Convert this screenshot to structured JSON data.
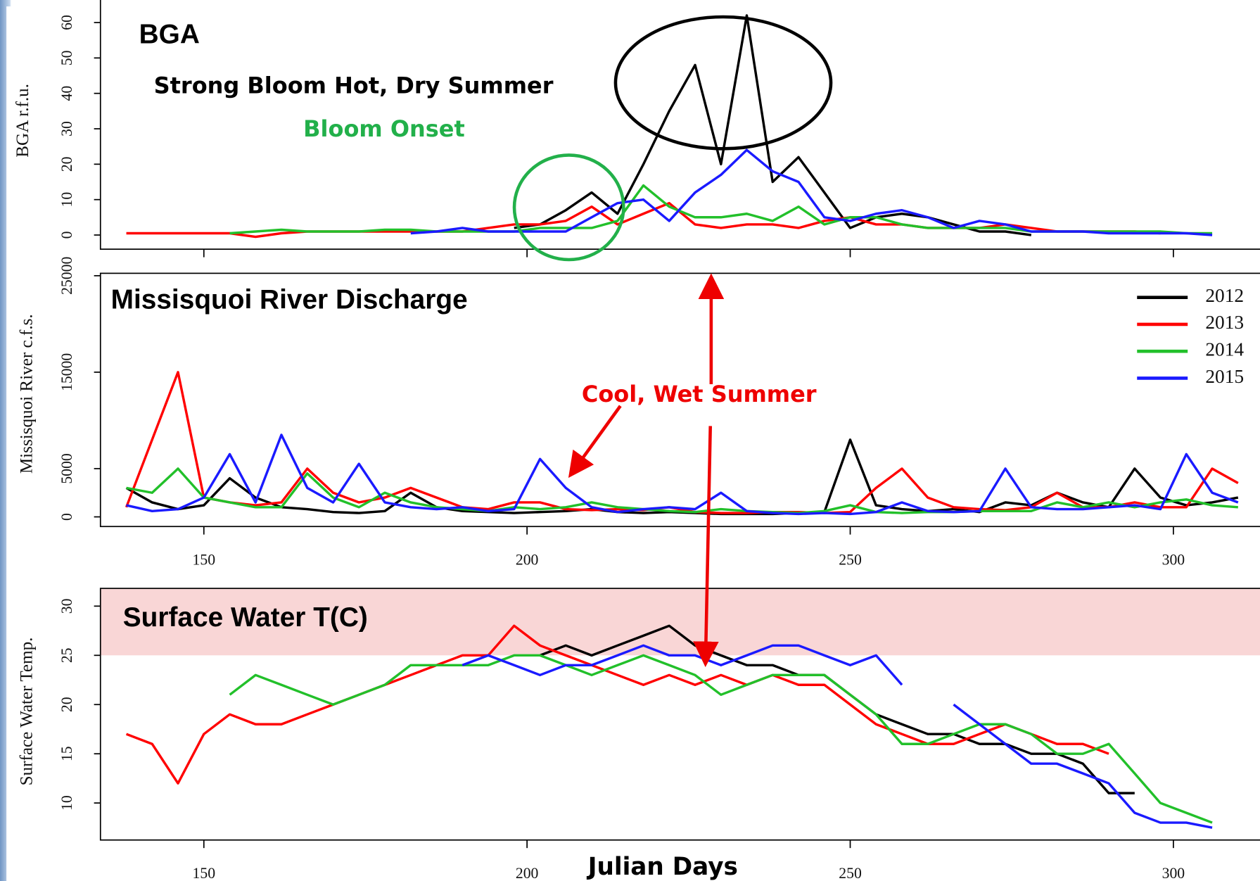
{
  "chart_data": [
    {
      "type": "line",
      "title": "BGA",
      "y_label": "BGA r.f.u.",
      "annotations": [
        "Strong Bloom Hot, Dry Summer",
        "Bloom Onset"
      ],
      "x": [
        138,
        142,
        146,
        150,
        154,
        158,
        162,
        166,
        170,
        174,
        178,
        182,
        186,
        190,
        194,
        198,
        202,
        206,
        210,
        214,
        218,
        222,
        226,
        230,
        234,
        238,
        242,
        246,
        250,
        254,
        258,
        262,
        266,
        270,
        274,
        278,
        282,
        286,
        290,
        294,
        298,
        302,
        306,
        310
      ],
      "xlim": [
        134,
        313.4
      ],
      "ylim": [
        -4,
        67.5
      ],
      "xticks": [
        150,
        200,
        250,
        300
      ],
      "yticks": [
        0,
        10,
        20,
        30,
        40,
        50,
        60
      ],
      "series": [
        {
          "color": "#000000",
          "values": [
            null,
            null,
            null,
            null,
            null,
            null,
            null,
            null,
            null,
            null,
            null,
            null,
            null,
            null,
            null,
            2,
            3,
            7,
            12,
            6,
            20,
            35,
            48,
            20,
            62,
            15,
            22,
            12,
            2,
            5,
            6,
            5,
            3,
            1,
            1,
            0,
            null,
            null,
            null,
            null,
            null,
            null,
            null,
            null
          ]
        },
        {
          "color": "#ff0000",
          "values": [
            0.5,
            0.5,
            0.5,
            0.5,
            0.5,
            -0.5,
            0.5,
            1,
            1,
            1,
            1,
            1,
            1,
            1,
            2,
            3,
            3,
            4,
            8,
            3,
            6,
            9,
            3,
            2,
            3,
            3,
            2,
            4,
            5,
            3,
            3,
            2,
            2,
            2,
            3,
            2,
            1,
            1,
            1,
            1,
            0.5,
            null,
            null,
            null
          ]
        },
        {
          "color": "#22c02a",
          "values": [
            null,
            null,
            null,
            null,
            0.5,
            1,
            1.5,
            1,
            1,
            1,
            1.5,
            1.5,
            1,
            1,
            1,
            1,
            2,
            2,
            2,
            4,
            14,
            8,
            5,
            5,
            6,
            4,
            8,
            3,
            5,
            5,
            3,
            2,
            2,
            2,
            2,
            1,
            1,
            1,
            1,
            1,
            1,
            0.5,
            0.5,
            null
          ]
        },
        {
          "color": "#1a1aff",
          "values": [
            null,
            null,
            null,
            null,
            null,
            null,
            null,
            null,
            null,
            null,
            null,
            0.5,
            1,
            2,
            1,
            1,
            1,
            1,
            5,
            9,
            10,
            4,
            12,
            17,
            24,
            18,
            15,
            5,
            4,
            6,
            7,
            5,
            2,
            4,
            3,
            1,
            1,
            1,
            0.5,
            0.5,
            0.5,
            0.5,
            0,
            null
          ]
        }
      ]
    },
    {
      "type": "line",
      "title": "Missisquoi River Discharge",
      "y_label": "Missisquoi River c.f.s.",
      "annotations": [
        "Cool, Wet Summer"
      ],
      "legend": "upper right",
      "x": [
        138,
        142,
        146,
        150,
        154,
        158,
        162,
        166,
        170,
        174,
        178,
        182,
        186,
        190,
        194,
        198,
        202,
        206,
        210,
        214,
        218,
        222,
        226,
        230,
        234,
        238,
        242,
        246,
        250,
        254,
        258,
        262,
        266,
        270,
        274,
        278,
        282,
        286,
        290,
        294,
        298,
        302,
        306,
        310
      ],
      "xlim": [
        134,
        313.4
      ],
      "ylim": [
        -1000,
        25250
      ],
      "xticks": [
        150,
        200,
        250,
        300
      ],
      "yticks": [
        0,
        5000,
        15000,
        25000
      ],
      "series": [
        {
          "name": "2012",
          "color": "#000000",
          "values": [
            3000,
            1500,
            800,
            1200,
            4000,
            2000,
            1000,
            800,
            500,
            400,
            600,
            2500,
            1000,
            600,
            500,
            400,
            500,
            600,
            800,
            500,
            400,
            500,
            400,
            300,
            300,
            300,
            400,
            500,
            8000,
            1200,
            800,
            600,
            800,
            500,
            1500,
            1200,
            2500,
            1500,
            1000,
            5000,
            2000,
            1200,
            1500,
            2000
          ]
        },
        {
          "name": "2013",
          "color": "#ff0000",
          "values": [
            1000,
            8000,
            15000,
            2000,
            1500,
            1200,
            1500,
            5000,
            2500,
            1500,
            2000,
            3000,
            2000,
            1000,
            800,
            1500,
            1500,
            800,
            700,
            800,
            700,
            1000,
            500,
            400,
            400,
            500,
            500,
            400,
            500,
            3000,
            5000,
            2000,
            1000,
            800,
            700,
            1000,
            2500,
            1000,
            1000,
            1500,
            1000,
            1000,
            5000,
            3500
          ]
        },
        {
          "name": "2014",
          "color": "#22c02a",
          "values": [
            3000,
            2500,
            5000,
            2000,
            1500,
            1000,
            1000,
            4500,
            2000,
            1000,
            2500,
            1500,
            1000,
            800,
            600,
            1000,
            800,
            1000,
            1500,
            1000,
            800,
            600,
            500,
            800,
            600,
            500,
            400,
            600,
            1200,
            500,
            400,
            500,
            500,
            600,
            600,
            600,
            1500,
            1000,
            1500,
            1000,
            1500,
            1800,
            1200,
            1000
          ]
        },
        {
          "name": "2015",
          "color": "#1a1aff",
          "values": [
            1200,
            600,
            800,
            2000,
            6500,
            1500,
            8500,
            3000,
            1500,
            5500,
            1500,
            1000,
            800,
            1000,
            600,
            800,
            6000,
            3000,
            1000,
            500,
            800,
            1000,
            800,
            2500,
            600,
            400,
            300,
            400,
            300,
            500,
            1500,
            600,
            500,
            600,
            5000,
            1000,
            800,
            800,
            1000,
            1200,
            800,
            6500,
            2500,
            1500
          ]
        }
      ]
    },
    {
      "type": "line",
      "title": "Surface Water T(C)",
      "y_label": "Surface Water Temp.",
      "x_label": "Julian Days",
      "highlight_ymin": 25,
      "highlight_color": "#f9d6d6",
      "x": [
        138,
        142,
        146,
        150,
        154,
        158,
        162,
        166,
        170,
        174,
        178,
        182,
        186,
        190,
        194,
        198,
        202,
        206,
        210,
        214,
        218,
        222,
        226,
        230,
        234,
        238,
        242,
        246,
        250,
        254,
        258,
        262,
        266,
        270,
        274,
        278,
        282,
        286,
        290,
        294,
        298,
        302,
        306,
        310
      ],
      "xlim": [
        134,
        313.4
      ],
      "ylim": [
        6.24,
        31.8
      ],
      "xticks": [
        150,
        200,
        250,
        300
      ],
      "yticks": [
        10,
        15,
        20,
        25,
        30
      ],
      "series": [
        {
          "color": "#000000",
          "values": [
            null,
            null,
            null,
            null,
            null,
            null,
            null,
            null,
            null,
            null,
            null,
            null,
            null,
            null,
            null,
            null,
            25,
            26,
            25,
            26,
            27,
            28,
            26,
            25,
            24,
            24,
            23,
            23,
            21,
            19,
            18,
            17,
            17,
            16,
            16,
            15,
            15,
            14,
            11,
            11,
            null,
            null,
            null,
            null
          ]
        },
        {
          "color": "#ff0000",
          "values": [
            17,
            16,
            12,
            17,
            19,
            18,
            18,
            19,
            20,
            21,
            22,
            23,
            24,
            25,
            25,
            28,
            26,
            25,
            24,
            23,
            22,
            23,
            22,
            23,
            22,
            23,
            22,
            22,
            20,
            18,
            17,
            16,
            16,
            17,
            18,
            17,
            16,
            16,
            15,
            null,
            null,
            null,
            null,
            null
          ]
        },
        {
          "color": "#22c02a",
          "values": [
            null,
            null,
            null,
            null,
            21,
            23,
            22,
            21,
            20,
            21,
            22,
            24,
            24,
            24,
            24,
            25,
            25,
            24,
            23,
            24,
            25,
            24,
            23,
            21,
            22,
            23,
            23,
            23,
            21,
            19,
            16,
            16,
            17,
            18,
            18,
            17,
            15,
            15,
            16,
            13,
            10,
            9,
            8,
            null
          ]
        },
        {
          "color": "#1a1aff",
          "values": [
            null,
            null,
            null,
            null,
            null,
            null,
            null,
            null,
            null,
            null,
            null,
            null,
            null,
            24,
            25,
            24,
            23,
            24,
            24,
            25,
            26,
            25,
            25,
            24,
            25,
            26,
            26,
            25,
            24,
            25,
            22,
            null,
            20,
            18,
            16,
            14,
            14,
            13,
            12,
            9,
            8,
            8,
            7.5,
            null
          ]
        }
      ]
    }
  ]
}
